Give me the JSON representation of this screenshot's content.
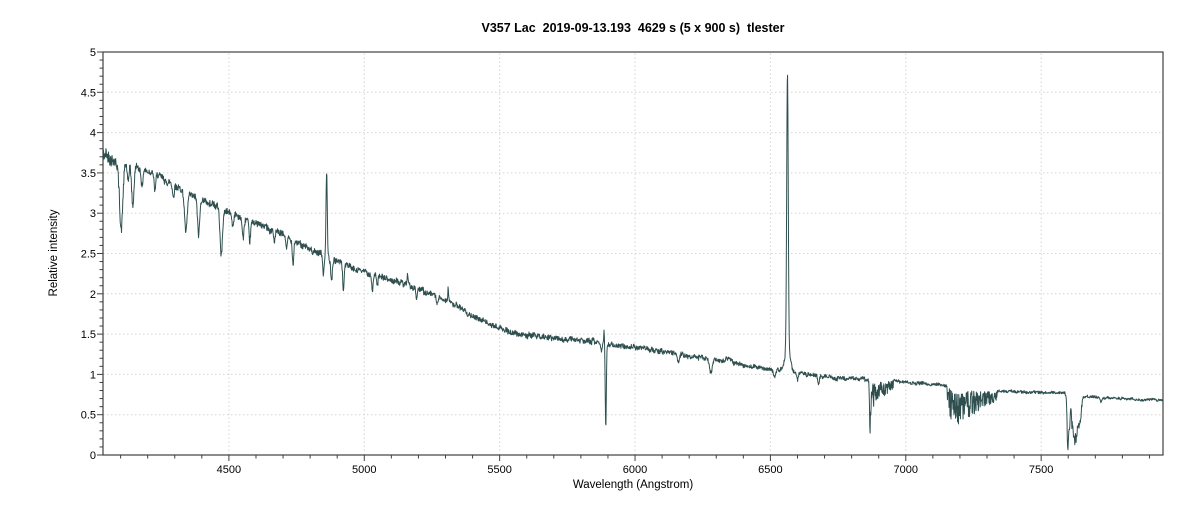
{
  "chart_data": {
    "type": "line",
    "title": "V357 Lac  2019-09-13.193  4629 s (5 x 900 s)  tlester",
    "xlabel": "Wavelength (Angstrom)",
    "ylabel": "Relative intensity",
    "xlim": [
      4035,
      7950
    ],
    "ylim": [
      0,
      5
    ],
    "x_major_ticks": [
      4500,
      5000,
      5500,
      6000,
      6500,
      7000,
      7500
    ],
    "x_tick_labels": [
      "4500",
      "5000",
      "5500",
      "6000",
      "6500",
      "7000",
      "7500"
    ],
    "x_minor_step": 100,
    "y_major_ticks": [
      0,
      0.5,
      1,
      1.5,
      2,
      2.5,
      3,
      3.5,
      4,
      4.5,
      5
    ],
    "y_tick_labels": [
      "0",
      "0.5",
      "1",
      "1.5",
      "2",
      "2.5",
      "3",
      "3.5",
      "4",
      "4.5",
      "5"
    ],
    "y_minor_step": 0.1,
    "grid": {
      "show": true,
      "style": "dotted",
      "color": "#d4d4d4",
      "at": "major-ticks"
    },
    "legend": null,
    "line_color": "#2f4f4f",
    "frame_color": "#3f3f3f",
    "continuum_points": [
      [
        4035,
        3.72
      ],
      [
        4090,
        3.64
      ],
      [
        4150,
        3.6
      ],
      [
        4200,
        3.52
      ],
      [
        4250,
        3.44
      ],
      [
        4300,
        3.34
      ],
      [
        4350,
        3.24
      ],
      [
        4400,
        3.16
      ],
      [
        4450,
        3.09
      ],
      [
        4500,
        3.01
      ],
      [
        4550,
        2.94
      ],
      [
        4600,
        2.87
      ],
      [
        4650,
        2.8
      ],
      [
        4700,
        2.72
      ],
      [
        4750,
        2.63
      ],
      [
        4800,
        2.55
      ],
      [
        4861,
        2.48
      ],
      [
        4900,
        2.41
      ],
      [
        4950,
        2.33
      ],
      [
        5000,
        2.27
      ],
      [
        5050,
        2.21
      ],
      [
        5100,
        2.17
      ],
      [
        5150,
        2.12
      ],
      [
        5200,
        2.06
      ],
      [
        5250,
        2.0
      ],
      [
        5300,
        1.93
      ],
      [
        5350,
        1.83
      ],
      [
        5400,
        1.73
      ],
      [
        5450,
        1.64
      ],
      [
        5500,
        1.57
      ],
      [
        5550,
        1.52
      ],
      [
        5600,
        1.49
      ],
      [
        5650,
        1.47
      ],
      [
        5700,
        1.45
      ],
      [
        5750,
        1.43
      ],
      [
        5800,
        1.42
      ],
      [
        5850,
        1.41
      ],
      [
        5900,
        1.38
      ],
      [
        5950,
        1.35
      ],
      [
        6000,
        1.34
      ],
      [
        6050,
        1.31
      ],
      [
        6100,
        1.28
      ],
      [
        6150,
        1.26
      ],
      [
        6200,
        1.23
      ],
      [
        6250,
        1.2
      ],
      [
        6300,
        1.17
      ],
      [
        6350,
        1.16
      ],
      [
        6400,
        1.12
      ],
      [
        6450,
        1.09
      ],
      [
        6500,
        1.07
      ],
      [
        6563,
        1.05
      ],
      [
        6600,
        1.02
      ],
      [
        6650,
        0.99
      ],
      [
        6700,
        0.97
      ],
      [
        6750,
        0.95
      ],
      [
        6800,
        0.945
      ],
      [
        6870,
        0.94
      ],
      [
        6960,
        0.92
      ],
      [
        7000,
        0.9
      ],
      [
        7050,
        0.89
      ],
      [
        7100,
        0.88
      ],
      [
        7150,
        0.86
      ],
      [
        7200,
        0.845
      ],
      [
        7250,
        0.825
      ],
      [
        7300,
        0.805
      ],
      [
        7350,
        0.79
      ],
      [
        7400,
        0.785
      ],
      [
        7450,
        0.78
      ],
      [
        7500,
        0.78
      ],
      [
        7560,
        0.77
      ],
      [
        7600,
        0.755
      ],
      [
        7650,
        0.73
      ],
      [
        7700,
        0.72
      ],
      [
        7750,
        0.71
      ],
      [
        7800,
        0.7
      ],
      [
        7850,
        0.69
      ],
      [
        7900,
        0.685
      ],
      [
        7950,
        0.68
      ]
    ],
    "spectral_features": [
      {
        "name": "H-delta 4102",
        "center": 4102,
        "amp": -0.85,
        "width": 6
      },
      {
        "name": "4128 absorption",
        "center": 4128,
        "amp": -0.25,
        "width": 3
      },
      {
        "name": "He I 4144",
        "center": 4145,
        "amp": -0.52,
        "width": 4.5
      },
      {
        "name": "4179 absorption",
        "center": 4179,
        "amp": -0.22,
        "width": 3
      },
      {
        "name": "4227 absorption",
        "center": 4227,
        "amp": -0.18,
        "width": 3
      },
      {
        "name": "4295 absorption",
        "center": 4295,
        "amp": -0.15,
        "width": 3
      },
      {
        "name": "H-gamma 4340",
        "center": 4341,
        "amp": -0.48,
        "width": 5
      },
      {
        "name": "He I 4388",
        "center": 4388,
        "amp": -0.45,
        "width": 4
      },
      {
        "name": "He I 4471",
        "center": 4472,
        "amp": -0.58,
        "width": 4.5
      },
      {
        "name": "4515 absorption",
        "center": 4515,
        "amp": -0.15,
        "width": 3
      },
      {
        "name": "4553 absorption",
        "center": 4553,
        "amp": -0.22,
        "width": 3.5
      },
      {
        "name": "4577 absorption",
        "center": 4577,
        "amp": -0.28,
        "width": 3
      },
      {
        "name": "4668 absorption",
        "center": 4668,
        "amp": -0.12,
        "width": 3
      },
      {
        "name": "He I 4713",
        "center": 4713,
        "amp": -0.14,
        "width": 3
      },
      {
        "name": "4737 absorption",
        "center": 4737,
        "amp": -0.28,
        "width": 2.5
      },
      {
        "name": "H-beta blue wing",
        "center": 4849,
        "amp": -0.27,
        "width": 2.2
      },
      {
        "name": "H-beta 4861 emission",
        "center": 4861,
        "amp": 1.02,
        "width": 2.2
      },
      {
        "name": "H-beta red wing",
        "center": 4879,
        "amp": -0.3,
        "width": 3
      },
      {
        "name": "He I 4922",
        "center": 4923,
        "amp": -0.33,
        "width": 2.5
      },
      {
        "name": "5030 absorption",
        "center": 5030,
        "amp": -0.2,
        "width": 3
      },
      {
        "name": "5048 absorption",
        "center": 5048,
        "amp": -0.12,
        "width": 2.5
      },
      {
        "name": "5160 spike",
        "center": 5160,
        "amp": 0.1,
        "width": 1.5
      },
      {
        "name": "5194 absorption",
        "center": 5194,
        "amp": -0.15,
        "width": 2.5
      },
      {
        "name": "5270 absorption",
        "center": 5270,
        "amp": -0.1,
        "width": 3
      },
      {
        "name": "5310 spike",
        "center": 5310,
        "amp": 0.16,
        "width": 1.5
      },
      {
        "name": "He I 5876",
        "center": 5876,
        "amp": -0.1,
        "width": 2.5
      },
      {
        "name": "5886 spike",
        "center": 5886,
        "amp": 0.18,
        "width": 1.2
      },
      {
        "name": "Na D 5892",
        "center": 5892,
        "amp": -1.05,
        "width": 2.0
      },
      {
        "name": "6160 absorption",
        "center": 6160,
        "amp": -0.08,
        "width": 3
      },
      {
        "name": "telluric 6280",
        "center": 6280,
        "amp": -0.17,
        "width": 5
      },
      {
        "name": "6340 bump",
        "center": 6340,
        "amp": 0.05,
        "width": 8
      },
      {
        "name": "6516 absorption",
        "center": 6516,
        "amp": -0.1,
        "width": 4
      },
      {
        "name": "H-alpha 6563 emission core",
        "center": 6563,
        "amp": 3.44,
        "width": 2.8
      },
      {
        "name": "H-alpha 6563 emission base",
        "center": 6563,
        "amp": 0.28,
        "width": 9
      },
      {
        "name": "6600 absorption",
        "center": 6600,
        "amp": -0.09,
        "width": 3
      },
      {
        "name": "He I 6678",
        "center": 6678,
        "amp": -0.08,
        "width": 3
      },
      {
        "name": "O2 B-band head 6868",
        "center": 6868,
        "amp": -0.45,
        "width": 2
      },
      {
        "name": "O2 A-band 7598",
        "center": 7598,
        "amp": -0.62,
        "width": 2.4
      },
      {
        "name": "O2 A-band 7604",
        "center": 7604,
        "amp": -0.42,
        "width": 3
      },
      {
        "name": "O2 A-band 7615",
        "center": 7615,
        "amp": -0.18,
        "width": 4
      },
      {
        "name": "O2 A-band 7627",
        "center": 7627,
        "amp": -0.46,
        "width": 8
      },
      {
        "name": "O2 A-band 7643",
        "center": 7643,
        "amp": -0.25,
        "width": 5
      },
      {
        "name": "7722 absorption",
        "center": 7722,
        "amp": -0.06,
        "width": 3
      }
    ],
    "telluric_bands": [
      {
        "name": "O2 B-band",
        "from": 6864,
        "to": 6955,
        "max_depth": 0.35
      },
      {
        "name": "H2O band",
        "from": 7152,
        "to": 7338,
        "max_depth": 0.45
      },
      {
        "name": "O2 A-band jag",
        "from": 7610,
        "to": 7652,
        "max_depth": 0.15
      }
    ],
    "noise": {
      "seed": 42,
      "amp_blue": 0.042,
      "amp_red": 0.013,
      "blue_edge_boost_below": 4170,
      "sample_step": 1.2
    }
  }
}
